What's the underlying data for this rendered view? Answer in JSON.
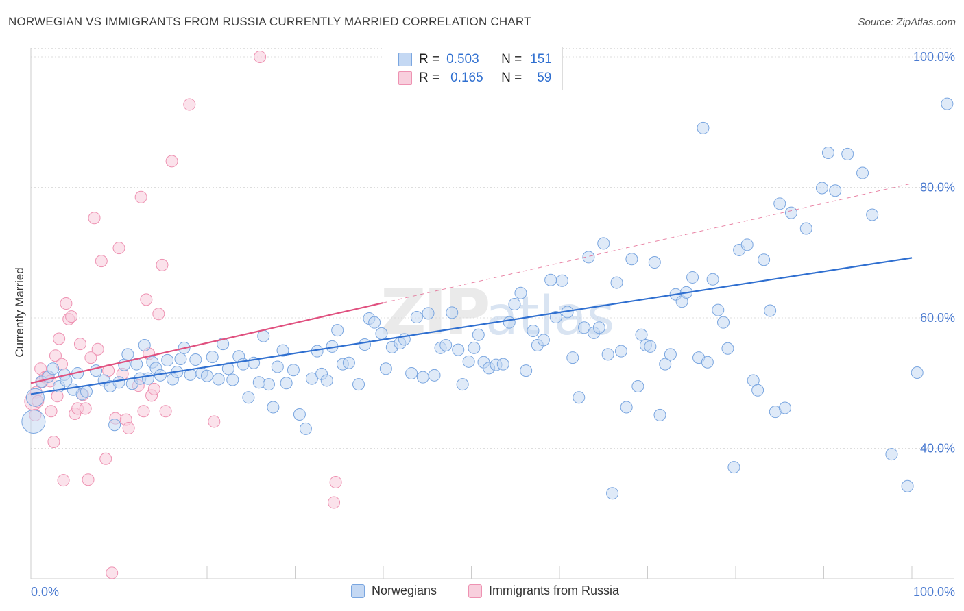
{
  "header": {
    "title": "NORWEGIAN VS IMMIGRANTS FROM RUSSIA CURRENTLY MARRIED CORRELATION CHART",
    "source": "Source: ZipAtlas.com"
  },
  "watermark": "ZIPatlas",
  "colors": {
    "blue": "#7aa6e0",
    "blue_fill": "#c4d8f3",
    "blue_line": "#2f6fd0",
    "pink": "#ee92b2",
    "pink_fill": "#f8cfdd",
    "pink_line": "#e0507f",
    "tick_label": "#4a7ad0",
    "grid": "#dddddd"
  },
  "legend_top": {
    "rows": [
      {
        "r_label": "R =",
        "r_value": "0.503",
        "n_label": "N =",
        "n_value": "151"
      },
      {
        "r_label": "R =",
        "r_value": "0.165",
        "n_label": "N =",
        "n_value": "59"
      }
    ]
  },
  "legend_bottom": {
    "items": [
      "Norwegians",
      "Immigrants from Russia"
    ]
  },
  "chart_data": {
    "type": "scatter",
    "title": "NORWEGIAN VS IMMIGRANTS FROM RUSSIA CURRENTLY MARRIED CORRELATION CHART",
    "xlabel": "",
    "ylabel": "Currently Married",
    "xlim": [
      0,
      100
    ],
    "ylim": [
      20,
      102
    ],
    "x_tick_labels": [
      "0.0%",
      "100.0%"
    ],
    "y_ticks": [
      {
        "value": 40,
        "label": "40.0%"
      },
      {
        "value": 60,
        "label": "60.0%"
      },
      {
        "value": 80,
        "label": "80.0%"
      },
      {
        "value": 100,
        "label": "100.0%"
      }
    ],
    "grid": true,
    "legend_placement": "top-center",
    "series": [
      {
        "name": "Norwegians",
        "r": 0.503,
        "n": 151,
        "trend": {
          "x0": 0,
          "y0": 48.3,
          "x1": 100,
          "y1": 69.2
        },
        "points": [
          [
            0.3,
            44.1,
            "L"
          ],
          [
            0.5,
            47.8,
            "M"
          ],
          [
            1.2,
            50.2
          ],
          [
            2.0,
            51.0
          ],
          [
            2.5,
            52.2
          ],
          [
            3.2,
            49.5
          ],
          [
            3.8,
            51.3
          ],
          [
            4.0,
            50.4
          ],
          [
            4.8,
            49.0
          ],
          [
            5.3,
            51.5
          ],
          [
            5.8,
            48.3
          ],
          [
            6.3,
            48.7
          ],
          [
            7.4,
            51.9
          ],
          [
            8.3,
            50.4
          ],
          [
            9.0,
            49.5
          ],
          [
            9.5,
            43.6
          ],
          [
            10.0,
            50.1
          ],
          [
            10.6,
            52.8
          ],
          [
            11.0,
            54.4
          ],
          [
            11.5,
            49.9
          ],
          [
            12.0,
            52.9
          ],
          [
            12.4,
            50.7
          ],
          [
            12.9,
            55.8
          ],
          [
            13.3,
            50.7
          ],
          [
            13.8,
            53.2
          ],
          [
            14.2,
            52.3
          ],
          [
            14.7,
            51.2
          ],
          [
            15.5,
            53.5
          ],
          [
            16.1,
            50.6
          ],
          [
            16.6,
            51.7
          ],
          [
            17.0,
            53.7
          ],
          [
            17.4,
            55.4
          ],
          [
            18.1,
            51.3
          ],
          [
            18.7,
            53.6
          ],
          [
            19.4,
            51.5
          ],
          [
            20.0,
            51.1
          ],
          [
            20.6,
            54.0
          ],
          [
            21.3,
            50.6
          ],
          [
            21.8,
            56.0
          ],
          [
            22.4,
            52.2
          ],
          [
            22.9,
            50.5
          ],
          [
            23.6,
            54.1
          ],
          [
            24.1,
            52.9
          ],
          [
            24.7,
            47.8
          ],
          [
            25.3,
            53.1
          ],
          [
            25.9,
            50.1
          ],
          [
            26.4,
            57.2
          ],
          [
            27.0,
            49.8
          ],
          [
            27.5,
            46.3
          ],
          [
            28.0,
            52.5
          ],
          [
            28.6,
            55.0
          ],
          [
            29.0,
            50.0
          ],
          [
            29.8,
            52.0
          ],
          [
            30.5,
            45.2
          ],
          [
            31.2,
            43.0
          ],
          [
            31.9,
            50.7
          ],
          [
            32.5,
            54.9
          ],
          [
            33.0,
            51.4
          ],
          [
            33.6,
            50.4
          ],
          [
            34.2,
            55.6
          ],
          [
            34.8,
            58.1
          ],
          [
            35.4,
            52.9
          ],
          [
            36.1,
            53.1
          ],
          [
            37.2,
            49.8
          ],
          [
            37.9,
            55.9
          ],
          [
            38.4,
            59.9
          ],
          [
            39.0,
            59.3
          ],
          [
            39.8,
            57.6
          ],
          [
            40.3,
            52.2
          ],
          [
            41.0,
            55.5
          ],
          [
            41.9,
            56.1
          ],
          [
            42.4,
            56.7
          ],
          [
            43.2,
            51.5
          ],
          [
            43.8,
            60.1
          ],
          [
            44.5,
            50.9
          ],
          [
            45.1,
            60.7
          ],
          [
            45.8,
            51.2
          ],
          [
            46.5,
            55.4
          ],
          [
            47.1,
            55.8
          ],
          [
            47.8,
            60.8
          ],
          [
            48.5,
            55.1
          ],
          [
            49.0,
            49.8
          ],
          [
            49.7,
            53.3
          ],
          [
            50.3,
            55.4
          ],
          [
            50.8,
            57.4
          ],
          [
            51.4,
            53.2
          ],
          [
            52.0,
            52.3
          ],
          [
            52.8,
            52.8
          ],
          [
            53.6,
            52.9
          ],
          [
            54.3,
            59.3
          ],
          [
            54.9,
            62.1
          ],
          [
            55.6,
            63.8
          ],
          [
            56.2,
            51.9
          ],
          [
            57.0,
            58.0
          ],
          [
            57.5,
            55.8
          ],
          [
            58.2,
            56.6
          ],
          [
            59.0,
            65.8
          ],
          [
            59.6,
            60.1
          ],
          [
            60.3,
            65.7
          ],
          [
            60.9,
            60.9
          ],
          [
            61.5,
            53.9
          ],
          [
            62.2,
            47.8
          ],
          [
            62.8,
            58.5
          ],
          [
            63.3,
            69.3
          ],
          [
            63.9,
            57.7
          ],
          [
            64.5,
            58.5
          ],
          [
            65.0,
            71.4
          ],
          [
            65.5,
            54.4
          ],
          [
            66.0,
            33.1
          ],
          [
            66.5,
            65.4
          ],
          [
            67.0,
            54.9
          ],
          [
            67.6,
            46.3
          ],
          [
            68.2,
            69.0
          ],
          [
            68.9,
            49.5
          ],
          [
            69.3,
            57.4
          ],
          [
            69.8,
            55.8
          ],
          [
            70.3,
            55.6
          ],
          [
            70.8,
            68.5
          ],
          [
            71.4,
            45.1
          ],
          [
            72.0,
            52.9
          ],
          [
            72.6,
            54.4
          ],
          [
            73.2,
            63.6
          ],
          [
            73.9,
            62.5
          ],
          [
            74.4,
            63.9
          ],
          [
            75.1,
            66.2
          ],
          [
            75.8,
            53.9
          ],
          [
            76.3,
            89.1
          ],
          [
            76.8,
            53.2
          ],
          [
            77.4,
            65.9
          ],
          [
            78.0,
            61.2
          ],
          [
            78.6,
            59.3
          ],
          [
            79.1,
            55.3
          ],
          [
            79.8,
            37.1
          ],
          [
            80.4,
            70.4
          ],
          [
            81.3,
            71.2
          ],
          [
            82.0,
            50.4
          ],
          [
            82.5,
            48.9
          ],
          [
            83.2,
            68.9
          ],
          [
            83.9,
            61.1
          ],
          [
            84.5,
            45.6
          ],
          [
            85.0,
            77.5
          ],
          [
            85.6,
            46.2
          ],
          [
            86.3,
            76.1
          ],
          [
            88.0,
            73.7
          ],
          [
            89.8,
            79.9
          ],
          [
            90.5,
            85.3
          ],
          [
            91.3,
            79.5
          ],
          [
            92.7,
            85.1
          ],
          [
            94.4,
            82.2
          ],
          [
            95.5,
            75.8
          ],
          [
            97.7,
            39.1
          ],
          [
            99.5,
            34.2
          ],
          [
            100.6,
            51.6
          ],
          [
            104.0,
            92.8
          ]
        ]
      },
      {
        "name": "Immigrants from Russia",
        "r": 0.165,
        "n": 59,
        "trend": {
          "x0": 0,
          "y0": 50.0,
          "x1": 40,
          "y1": 62.3
        },
        "trend_dashed": {
          "x0": 40,
          "y0": 62.3,
          "x1": 100,
          "y1": 80.6
        },
        "points": [
          [
            0.3,
            47.2,
            "M"
          ],
          [
            0.5,
            45.1
          ],
          [
            0.6,
            48.6
          ],
          [
            0.8,
            47.2
          ],
          [
            1.1,
            52.2
          ],
          [
            1.3,
            50.2
          ],
          [
            1.6,
            50.9
          ],
          [
            1.9,
            51.0
          ],
          [
            2.2,
            50.3
          ],
          [
            2.3,
            45.7
          ],
          [
            2.6,
            41.0
          ],
          [
            2.8,
            54.2
          ],
          [
            3.0,
            48.0
          ],
          [
            3.2,
            56.8
          ],
          [
            3.5,
            52.9
          ],
          [
            3.7,
            35.1
          ],
          [
            4.0,
            62.2
          ],
          [
            4.3,
            59.8
          ],
          [
            4.6,
            60.2
          ],
          [
            5.0,
            45.3
          ],
          [
            5.3,
            46.1
          ],
          [
            5.6,
            56.0
          ],
          [
            5.9,
            48.2
          ],
          [
            6.2,
            46.1
          ],
          [
            6.5,
            35.2
          ],
          [
            6.8,
            53.9
          ],
          [
            7.2,
            75.3
          ],
          [
            7.6,
            55.2
          ],
          [
            8.0,
            68.7
          ],
          [
            8.5,
            38.4
          ],
          [
            8.8,
            51.9
          ],
          [
            9.2,
            20.9
          ],
          [
            9.6,
            44.6
          ],
          [
            10.0,
            70.7
          ],
          [
            10.4,
            51.4
          ],
          [
            10.8,
            44.4
          ],
          [
            11.1,
            43.1
          ],
          [
            12.2,
            49.6
          ],
          [
            12.5,
            78.5
          ],
          [
            12.8,
            45.7
          ],
          [
            13.1,
            62.8
          ],
          [
            13.4,
            54.5
          ],
          [
            13.7,
            48.1
          ],
          [
            14.0,
            49.1
          ],
          [
            14.5,
            60.6
          ],
          [
            14.9,
            68.1
          ],
          [
            15.3,
            45.7
          ],
          [
            16.0,
            84.0
          ],
          [
            18.0,
            92.7
          ],
          [
            20.8,
            44.1
          ],
          [
            26.0,
            100.0
          ],
          [
            34.4,
            31.7
          ],
          [
            34.6,
            34.8
          ]
        ]
      }
    ]
  }
}
